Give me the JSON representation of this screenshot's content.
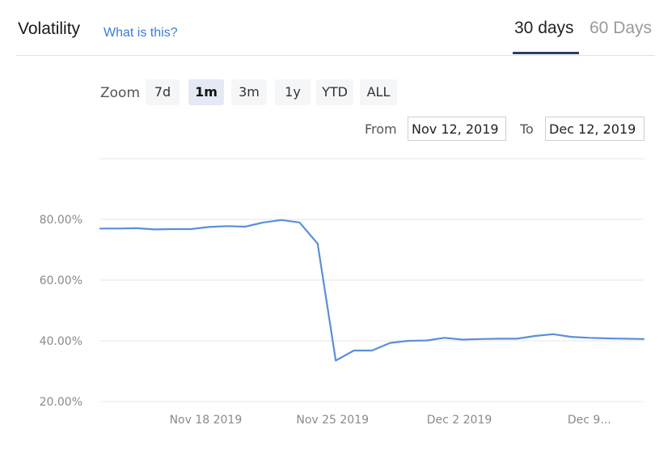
{
  "header": {
    "title": "Volatility",
    "help_link": "What is this?",
    "tabs": [
      {
        "label": "30 days",
        "active": true
      },
      {
        "label": "60 Days",
        "active": false
      }
    ]
  },
  "zoom": {
    "label": "Zoom",
    "options": [
      "7d",
      "1m",
      "3m",
      "1y",
      "YTD",
      "ALL"
    ],
    "selected": "1m"
  },
  "range": {
    "from_label": "From",
    "from_value": "Nov 12, 2019",
    "to_label": "To",
    "to_value": "Dec 12, 2019"
  },
  "colors": {
    "line": "#5b8fd8",
    "accent": "#2c3e66",
    "link": "#3d7bd9"
  },
  "chart_data": {
    "type": "line",
    "x": [
      "2019-11-12",
      "2019-11-13",
      "2019-11-14",
      "2019-11-15",
      "2019-11-16",
      "2019-11-17",
      "2019-11-18",
      "2019-11-19",
      "2019-11-20",
      "2019-11-21",
      "2019-11-22",
      "2019-11-23",
      "2019-11-24",
      "2019-11-25",
      "2019-11-26",
      "2019-11-27",
      "2019-11-28",
      "2019-11-29",
      "2019-11-30",
      "2019-12-01",
      "2019-12-02",
      "2019-12-03",
      "2019-12-04",
      "2019-12-05",
      "2019-12-06",
      "2019-12-07",
      "2019-12-08",
      "2019-12-09",
      "2019-12-10",
      "2019-12-11",
      "2019-12-12"
    ],
    "series": [
      {
        "values": [
          77.0,
          77.0,
          77.1,
          76.7,
          76.8,
          76.8,
          77.5,
          77.8,
          77.6,
          79.0,
          79.8,
          79.0,
          72.0,
          33.5,
          36.8,
          36.8,
          39.3,
          40.0,
          40.1,
          41.0,
          40.4,
          40.6,
          40.7,
          40.7,
          41.6,
          42.2,
          41.3,
          41.0,
          40.8,
          40.7,
          40.6
        ]
      }
    ],
    "x_tick_labels": [
      "Nov 18 2019",
      "Nov 25 2019",
      "Dec 2 2019",
      "Dec 9..."
    ],
    "y_tick_labels": [
      "20.00%",
      "40.00%",
      "60.00%",
      "80.00%"
    ],
    "y_ticks": [
      20,
      40,
      60,
      80
    ],
    "ylim": [
      20,
      100
    ],
    "grid": true,
    "legend": false
  }
}
